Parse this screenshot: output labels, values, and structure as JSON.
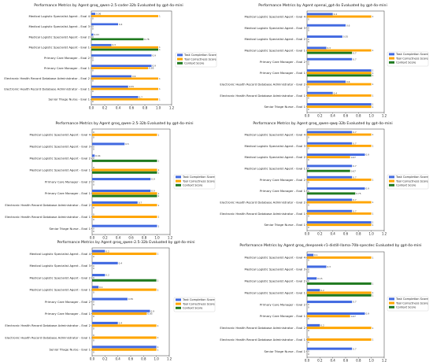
{
  "colors": {
    "task": "#4169e1",
    "tool": "#ffa500",
    "context": "#1f7a1f"
  },
  "chart_data": [
    {
      "type": "bar",
      "orientation": "horizontal",
      "title": "Performance Metrics by Agent groq_qwen-2.5-coder-32b Evaluated by gpt-4o-mini",
      "categories": [
        "Medical Logistic Specialist Agent - Eval 4",
        "Medical Logistic Specialist Agent - Eval 3",
        "Medical Logistic Specialist Agent - Eval 2",
        "Medical Logistic Specialist Agent - Eval 1",
        "Primary Care Manager - Eval 2",
        "Primary Care Manager - Eval 1",
        "Electronic Health Record Database Administrator - Eval 2",
        "Electronic Health Record Database Administrator - Eval 1",
        "Senior Triage Nurse - Eval 1"
      ],
      "series": [
        {
          "name": "Task Completion Score",
          "values": [
            0.06,
            0.4,
            0.03,
            0.3,
            0.9,
            0.9,
            0.6,
            0.55,
            0.7
          ]
        },
        {
          "name": "Tool Correctness Score",
          "values": [
            1,
            0,
            0,
            1,
            0,
            0.85,
            1,
            1,
            1
          ]
        },
        {
          "name": "Context Score",
          "values": [
            0,
            0,
            0.78,
            1,
            0,
            0,
            0,
            0,
            0
          ]
        }
      ],
      "xlim": [
        0,
        1.2
      ],
      "xticks": [
        "0.0",
        "0.2",
        "0.4",
        "0.6",
        "0.8",
        "1.0",
        "1.2"
      ],
      "legend": "right"
    },
    {
      "type": "bar",
      "orientation": "horizontal",
      "title": "Performance Metrics by Agent openai_gpt-4o Evaluated by gpt-4o-mini",
      "categories": [
        "Medical Logistic Specialist Agent - Eval 4",
        "Medical Logistic Specialist Agent - Eval 3",
        "Medical Logistic Specialist Agent - Eval 2",
        "Medical Logistic Specialist Agent - Eval 1",
        "Primary Care Manager - Eval 2",
        "Primary Care Manager - Eval 1",
        "Electronic Health Record Database Administrator - Eval 2",
        "Electronic Health Record Database Administrator - Eval 1",
        "Senior Triage Nurse - Eval 1"
      ],
      "series": [
        {
          "name": "Task Completion Score",
          "values": [
            0.4,
            0.6,
            0.55,
            0.3,
            0.7,
            1,
            0.6,
            0.4,
            1
          ]
        },
        {
          "name": "Tool Correctness Score",
          "values": [
            1,
            0,
            0,
            1,
            0,
            1,
            1,
            1,
            1
          ]
        },
        {
          "name": "Context Score",
          "values": [
            0,
            0,
            0,
            0.7,
            0,
            1,
            0,
            0,
            0
          ]
        }
      ],
      "xlim": [
        0,
        1.2
      ],
      "xticks": [
        "0.0",
        "0.2",
        "0.4",
        "0.6",
        "0.8",
        "1.0",
        "1.2"
      ],
      "legend": "right"
    },
    {
      "type": "bar",
      "orientation": "horizontal",
      "title": "Performance Metrics by Agent groq_qwen-2.5-32b Evaluated by gpt-4o-mini",
      "categories": [
        "Medical Logistic Specialist Agent - Eval 4",
        "Medical Logistic Specialist Agent - Eval 3",
        "Medical Logistic Specialist Agent - Eval 2",
        "Medical Logistic Specialist Agent - Eval 1",
        "Primary Care Manager - Eval 2",
        "Primary Care Manager - Eval 1",
        "Electronic Health Record Database Administrator - Eval 2",
        "Electronic Health Record Database Administrator - Eval 1",
        "Senior Triage Nurse - Eval 1"
      ],
      "series": [
        {
          "name": "Task Completion Score",
          "values": [
            0,
            0.5,
            0.04,
            0,
            0.9,
            0.9,
            0.7,
            0,
            1
          ]
        },
        {
          "name": "Tool Correctness Score",
          "values": [
            1,
            0,
            0,
            1,
            0,
            1,
            1,
            1,
            0
          ]
        },
        {
          "name": "Context Score",
          "values": [
            0,
            0,
            1,
            1,
            0,
            1,
            0,
            0,
            0
          ]
        }
      ],
      "xlim": [
        0,
        1.2
      ],
      "xticks": [
        "0.0",
        "0.2",
        "0.4",
        "0.6",
        "0.8",
        "1.0",
        "1.2"
      ],
      "legend": "right"
    },
    {
      "type": "bar",
      "orientation": "horizontal",
      "title": "Performance Metrics by Agent groq_qwen-qwq-32b Evaluated by gpt-4o-mini",
      "categories": [
        "Medical Logistic Specialist Agent - Eval 4",
        "Medical Logistic Specialist Agent - Eval 3",
        "Medical Logistic Specialist Agent - Eval 2",
        "Medical Logistic Specialist Agent - Eval 1",
        "Primary Care Manager - Eval 2",
        "Primary Care Manager - Eval 1",
        "Electronic Health Record Database Administrator - Eval 2",
        "Electronic Health Record Database Administrator - Eval 1",
        "Senior Triage Nurse - Eval 1"
      ],
      "series": [
        {
          "name": "Task Completion Score",
          "values": [
            0.7,
            0.7,
            0.9,
            0.7,
            0.7,
            0.9,
            0.7,
            0.7,
            1
          ]
        },
        {
          "name": "Tool Correctness Score",
          "values": [
            1,
            1,
            0.67,
            0,
            1,
            0,
            1,
            1,
            1
          ]
        },
        {
          "name": "Context Score",
          "values": [
            0,
            0,
            0,
            0.67,
            0,
            0.75,
            0,
            0,
            0
          ]
        }
      ],
      "xlim": [
        0,
        1.2
      ],
      "xticks": [
        "0.0",
        "0.2",
        "0.4",
        "0.6",
        "0.8",
        "1.0",
        "1.2"
      ],
      "legend": "right"
    },
    {
      "type": "bar",
      "orientation": "horizontal",
      "title": "Performance Metrics by Agent groq_qwen-2.5-32b Evaluated by gpt-4o-mini",
      "categories": [
        "Medical Logistic Specialist Agent - Eval 4",
        "Medical Logistic Specialist Agent - Eval 3",
        "Medical Logistic Specialist Agent - Eval 2",
        "Medical Logistic Specialist Agent - Eval 1",
        "Primary Care Manager - Eval 2",
        "Primary Care Manager - Eval 1",
        "Electronic Health Record Database Administrator - Eval 2",
        "Electronic Health Record Database Administrator - Eval 1",
        "Senior Triage Nurse - Eval 1"
      ],
      "series": [
        {
          "name": "Task Completion Score",
          "values": [
            0.2,
            0.4,
            0.2,
            0.1,
            0.55,
            0.9,
            0.4,
            0,
            1
          ]
        },
        {
          "name": "Tool Correctness Score",
          "values": [
            1,
            0,
            0,
            1,
            0,
            0.85,
            1,
            1,
            1
          ]
        },
        {
          "name": "Context Score",
          "values": [
            0,
            0,
            1,
            0,
            0,
            0,
            0,
            0,
            0
          ]
        }
      ],
      "xlim": [
        0,
        1.2
      ],
      "xticks": [
        "0.0",
        "0.2",
        "0.4",
        "0.6",
        "0.8",
        "1.0",
        "1.2"
      ],
      "legend": "right"
    },
    {
      "type": "bar",
      "orientation": "horizontal",
      "title": "Performance Metrics by Agent groq_deepseek-r1-distill-llama-70b-specdec Evaluated by gpt-4o-mini",
      "categories": [
        "Medical Logistic Specialist Agent - Eval 4",
        "Medical Logistic Specialist Agent - Eval 3",
        "Medical Logistic Specialist Agent - Eval 2",
        "Medical Logistic Specialist Agent - Eval 1",
        "Primary Care Manager - Eval 2",
        "Primary Care Manager - Eval 1",
        "Electronic Health Record Database Administrator - Eval 2",
        "Electronic Health Record Database Administrator - Eval 1",
        "Senior Triage Nurse - Eval 1"
      ],
      "series": [
        {
          "name": "Task Completion Score",
          "values": [
            0.1,
            0.3,
            0.15,
            0.2,
            0.7,
            0.9,
            0.2,
            0,
            0.7
          ]
        },
        {
          "name": "Tool Correctness Score",
          "values": [
            1,
            0,
            0,
            1,
            0,
            0.67,
            1,
            1,
            0
          ]
        },
        {
          "name": "Context Score",
          "values": [
            0,
            0,
            1,
            1,
            0,
            0,
            0,
            0,
            0
          ]
        }
      ],
      "xlim": [
        0,
        1.2
      ],
      "xticks": [
        "0.0",
        "0.2",
        "0.4",
        "0.6",
        "0.8",
        "1.0",
        "1.2"
      ],
      "legend": "right"
    }
  ]
}
